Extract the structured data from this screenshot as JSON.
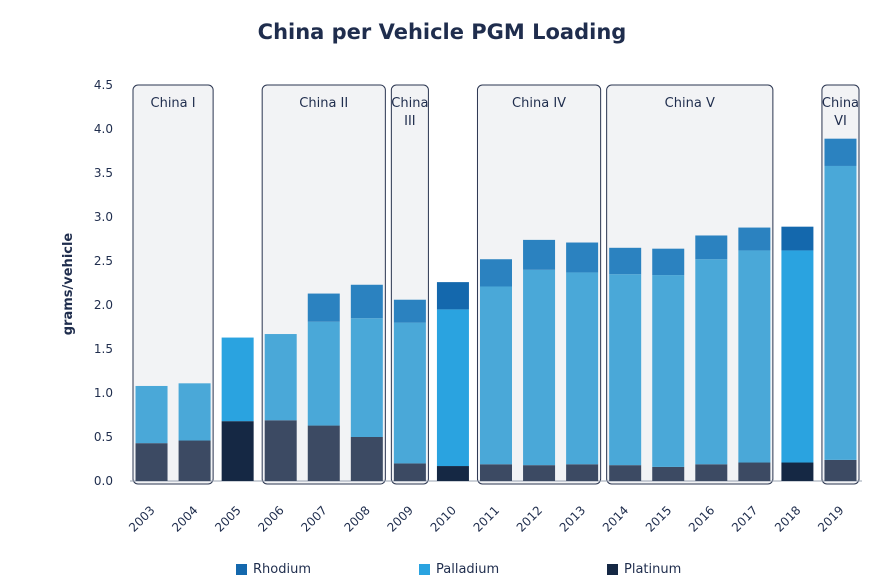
{
  "chart_data": {
    "type": "bar",
    "stacked": true,
    "title": "China per Vehicle PGM Loading",
    "ylabel": "grams/vehicle",
    "xlabel": "",
    "ylim": [
      0,
      4.5
    ],
    "yticks": [
      "0.0",
      "0.5",
      "1.0",
      "1.5",
      "2.0",
      "2.5",
      "3.0",
      "3.5",
      "4.0",
      "4.5"
    ],
    "categories": [
      "2003",
      "2004",
      "2005",
      "2006",
      "2007",
      "2008",
      "2009",
      "2010",
      "2011",
      "2012",
      "2013",
      "2014",
      "2015",
      "2016",
      "2017",
      "2018",
      "2019"
    ],
    "series": [
      {
        "name": "Platinum",
        "values": [
          0.43,
          0.46,
          0.68,
          0.69,
          0.63,
          0.5,
          0.2,
          0.17,
          0.19,
          0.18,
          0.19,
          0.18,
          0.16,
          0.19,
          0.21,
          0.21,
          0.24
        ]
      },
      {
        "name": "Palladium",
        "values": [
          0.65,
          0.65,
          0.95,
          0.98,
          1.18,
          1.35,
          1.6,
          1.78,
          2.02,
          2.22,
          2.18,
          2.17,
          2.18,
          2.33,
          2.41,
          2.41,
          3.34
        ]
      },
      {
        "name": "Rhodium",
        "values": [
          0,
          0,
          0,
          0,
          0.32,
          0.38,
          0.26,
          0.31,
          0.31,
          0.34,
          0.34,
          0.3,
          0.3,
          0.27,
          0.26,
          0.27,
          0.31
        ]
      }
    ],
    "eras": [
      {
        "label": "China I",
        "from": "2003",
        "to": "2004"
      },
      {
        "label": "China II",
        "from": "2006",
        "to": "2008"
      },
      {
        "label": "China III",
        "from": "2009",
        "to": "2009"
      },
      {
        "label": "China IV",
        "from": "2011",
        "to": "2013"
      },
      {
        "label": "China V",
        "from": "2014",
        "to": "2017"
      },
      {
        "label": "China VI",
        "from": "2019",
        "to": "2019"
      }
    ],
    "legend": {
      "position": "bottom",
      "items": [
        "Rhodium",
        "Palladium",
        "Platinum"
      ]
    },
    "grid": false
  },
  "colors": {
    "Platinum": "#3c4a63",
    "Palladium": "#4aa8d8",
    "Rhodium": "#2b82c0",
    "bar_2005_platinum": "#152844",
    "bar_2005_palladium": "#2aa3e0",
    "bar_2010_palladium": "#2aa3e0",
    "bar_2010_rhodium": "#1468ad",
    "bar_2010_platinum": "#152844",
    "bar_2018_palladium": "#2aa3e0",
    "bar_2018_rhodium": "#1468ad",
    "bar_2018_platinum": "#152844",
    "era_fill": "#f2f3f5",
    "era_border": "#2a3550",
    "legend_rhodium": "#1468ad",
    "legend_palladium": "#2aa3e0",
    "legend_platinum": "#152844",
    "title": "#1f2d4d"
  }
}
